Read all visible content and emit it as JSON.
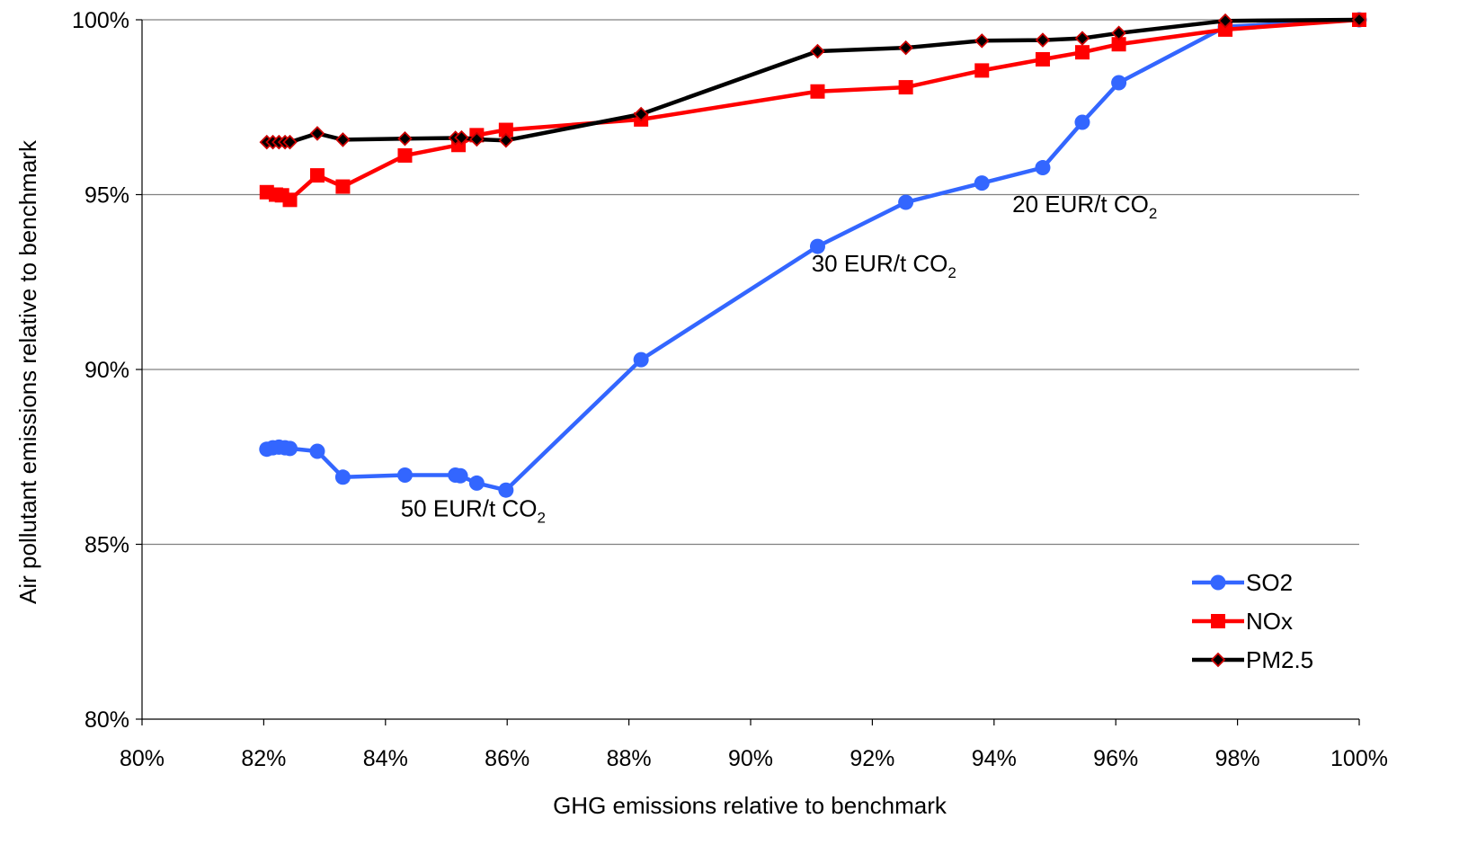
{
  "chart_data": {
    "type": "line",
    "title": "",
    "xlabel": "GHG emissions relative to benchmark",
    "ylabel": "Air pollutant emissions relative to benchmark",
    "xlim": [
      80,
      100
    ],
    "ylim": [
      80,
      100
    ],
    "x_ticks": [
      80,
      82,
      84,
      86,
      88,
      90,
      92,
      94,
      96,
      98,
      100
    ],
    "y_ticks": [
      80,
      85,
      90,
      95,
      100
    ],
    "tick_suffix": "%",
    "grid": "horizontal",
    "legend_position": "bottom-right",
    "series": [
      {
        "name": "SO2",
        "color": "#3366ff",
        "marker": "circle",
        "points": [
          [
            82.05,
            87.72
          ],
          [
            82.15,
            87.76
          ],
          [
            82.25,
            87.78
          ],
          [
            82.35,
            87.76
          ],
          [
            82.43,
            87.74
          ],
          [
            82.88,
            87.66
          ],
          [
            83.3,
            86.92
          ],
          [
            84.32,
            86.98
          ],
          [
            85.15,
            86.98
          ],
          [
            85.23,
            86.96
          ],
          [
            85.5,
            86.75
          ],
          [
            85.98,
            86.55
          ],
          [
            88.2,
            90.28
          ],
          [
            91.1,
            93.52
          ],
          [
            92.55,
            94.78
          ],
          [
            93.8,
            95.33
          ],
          [
            94.8,
            95.77
          ],
          [
            95.45,
            97.07
          ],
          [
            96.05,
            98.2
          ],
          [
            97.8,
            99.8
          ],
          [
            100,
            100
          ]
        ]
      },
      {
        "name": "NOx",
        "color": "#ff0000",
        "marker": "square",
        "points": [
          [
            82.05,
            95.07
          ],
          [
            82.2,
            95.0
          ],
          [
            82.3,
            94.98
          ],
          [
            82.43,
            94.85
          ],
          [
            82.88,
            95.55
          ],
          [
            83.3,
            95.23
          ],
          [
            84.32,
            96.12
          ],
          [
            85.2,
            96.42
          ],
          [
            85.5,
            96.7
          ],
          [
            85.98,
            96.85
          ],
          [
            88.2,
            97.15
          ],
          [
            91.1,
            97.95
          ],
          [
            92.55,
            98.07
          ],
          [
            93.8,
            98.55
          ],
          [
            94.8,
            98.87
          ],
          [
            95.45,
            99.07
          ],
          [
            96.05,
            99.3
          ],
          [
            97.8,
            99.72
          ],
          [
            100,
            100
          ]
        ]
      },
      {
        "name": "PM2.5",
        "color": "#000000",
        "marker": "diamond",
        "points": [
          [
            82.05,
            96.5
          ],
          [
            82.15,
            96.5
          ],
          [
            82.25,
            96.5
          ],
          [
            82.35,
            96.5
          ],
          [
            82.43,
            96.5
          ],
          [
            82.88,
            96.75
          ],
          [
            83.3,
            96.57
          ],
          [
            84.32,
            96.6
          ],
          [
            85.15,
            96.62
          ],
          [
            85.25,
            96.63
          ],
          [
            85.5,
            96.58
          ],
          [
            85.98,
            96.55
          ],
          [
            88.2,
            97.3
          ],
          [
            91.1,
            99.1
          ],
          [
            92.55,
            99.2
          ],
          [
            93.8,
            99.4
          ],
          [
            94.8,
            99.42
          ],
          [
            95.45,
            99.47
          ],
          [
            96.05,
            99.62
          ],
          [
            97.8,
            99.97
          ],
          [
            100,
            100
          ]
        ]
      }
    ],
    "annotations": [
      {
        "text": "20 EUR/t CO",
        "sub": "2",
        "x": 94.3,
        "y": 94.5
      },
      {
        "text": "30 EUR/t CO",
        "sub": "2",
        "x": 91.0,
        "y": 92.8
      },
      {
        "text": "50 EUR/t CO",
        "sub": "2",
        "x": 84.25,
        "y": 85.8
      }
    ]
  }
}
